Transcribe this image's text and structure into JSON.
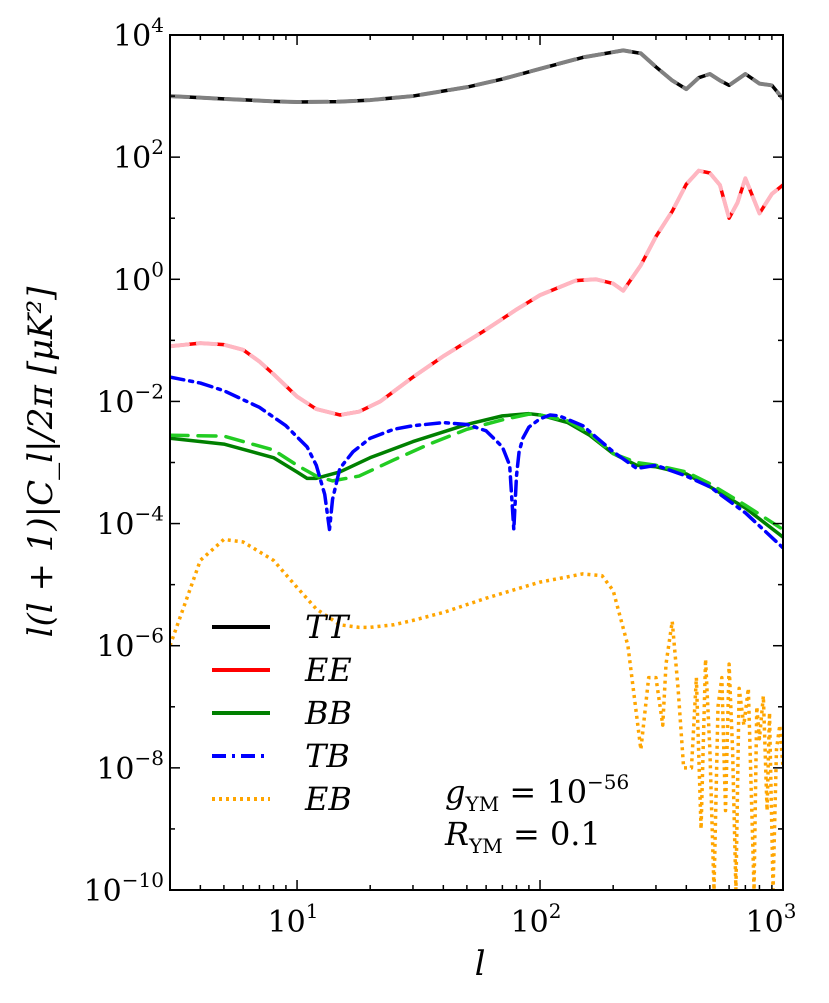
{
  "chart_data": {
    "type": "line",
    "title": "",
    "xlabel": "l",
    "ylabel": "l(l + 1)|C_l|/2π  [μK²]",
    "xscale": "log",
    "yscale": "log",
    "xlim": [
      3,
      1000
    ],
    "ylim": [
      1e-10,
      10000
    ],
    "grid": false,
    "legend_position": "bottom-left",
    "x_ticks": [
      {
        "value": 10,
        "base": "10",
        "exp": "1"
      },
      {
        "value": 100,
        "base": "10",
        "exp": "2"
      },
      {
        "value": 1000,
        "base": "10",
        "exp": "3"
      }
    ],
    "y_ticks": [
      {
        "value": 1e-10,
        "base": "10",
        "exp": "−10"
      },
      {
        "value": 1e-08,
        "base": "10",
        "exp": "−8"
      },
      {
        "value": 1e-06,
        "base": "10",
        "exp": "−6"
      },
      {
        "value": 0.0001,
        "base": "10",
        "exp": "−4"
      },
      {
        "value": 0.01,
        "base": "10",
        "exp": "−2"
      },
      {
        "value": 1,
        "base": "10",
        "exp": "0"
      },
      {
        "value": 100,
        "base": "10",
        "exp": "2"
      },
      {
        "value": 10000,
        "base": "10",
        "exp": "4"
      }
    ],
    "series": [
      {
        "name": "TT",
        "key": "tt",
        "color": "#000000",
        "style": "solid",
        "x": [
          3,
          5,
          8,
          10,
          15,
          20,
          30,
          50,
          70,
          100,
          150,
          220,
          260,
          300,
          350,
          400,
          450,
          500,
          550,
          600,
          700,
          800,
          900,
          1000
        ],
        "y": [
          1000,
          900,
          820,
          800,
          810,
          860,
          1000,
          1400,
          1900,
          2800,
          4300,
          5600,
          5000,
          3000,
          1800,
          1300,
          2000,
          2300,
          1800,
          1500,
          2300,
          1600,
          1500,
          900
        ]
      },
      {
        "name": "TT (dashed)",
        "key": "tt2",
        "color": "#808080",
        "style": "dashed",
        "x": [
          3,
          5,
          8,
          10,
          15,
          20,
          30,
          50,
          70,
          100,
          150,
          220,
          260,
          300,
          350,
          400,
          450,
          500,
          550,
          600,
          700,
          800,
          900,
          1000
        ],
        "y": [
          1000,
          900,
          820,
          800,
          810,
          860,
          1000,
          1400,
          1900,
          2800,
          4300,
          5600,
          5000,
          3000,
          1800,
          1300,
          2000,
          2300,
          1800,
          1500,
          2300,
          1600,
          1500,
          900
        ]
      },
      {
        "name": "EE",
        "key": "ee",
        "color": "#ff0000",
        "style": "solid",
        "x": [
          3,
          4,
          5,
          6,
          7,
          8,
          10,
          12,
          15,
          18,
          22,
          30,
          40,
          60,
          80,
          100,
          140,
          170,
          200,
          220,
          260,
          300,
          350,
          400,
          450,
          500,
          550,
          600,
          650,
          700,
          800,
          900,
          1000
        ],
        "y": [
          0.08,
          0.09,
          0.085,
          0.07,
          0.045,
          0.028,
          0.012,
          0.0075,
          0.006,
          0.0068,
          0.01,
          0.025,
          0.055,
          0.15,
          0.32,
          0.55,
          0.95,
          1.0,
          0.85,
          0.65,
          1.7,
          5,
          13,
          36,
          60,
          55,
          35,
          10,
          18,
          45,
          12,
          25,
          35
        ]
      },
      {
        "name": "EE (dashed)",
        "key": "ee2",
        "color": "#ffb6c1",
        "style": "dashed",
        "x": [
          3,
          4,
          5,
          6,
          7,
          8,
          10,
          12,
          15,
          18,
          22,
          30,
          40,
          60,
          80,
          100,
          140,
          170,
          200,
          220,
          260,
          300,
          350,
          400,
          450,
          500,
          550,
          600,
          650,
          700,
          800,
          900,
          1000
        ],
        "y": [
          0.08,
          0.09,
          0.085,
          0.07,
          0.045,
          0.028,
          0.012,
          0.0075,
          0.006,
          0.0068,
          0.01,
          0.025,
          0.055,
          0.15,
          0.32,
          0.55,
          0.95,
          1.0,
          0.85,
          0.65,
          1.7,
          5,
          13,
          36,
          60,
          55,
          35,
          10,
          18,
          45,
          12,
          25,
          35
        ]
      },
      {
        "name": "BB",
        "key": "bb",
        "color": "#008000",
        "style": "solid",
        "x": [
          3,
          5,
          8,
          10,
          11,
          12,
          15,
          20,
          30,
          50,
          70,
          90,
          100,
          130,
          160,
          200,
          250,
          300,
          400,
          500,
          700,
          1000
        ],
        "y": [
          0.0025,
          0.002,
          0.0012,
          0.0007,
          0.00055,
          0.00055,
          0.0007,
          0.0012,
          0.0022,
          0.0042,
          0.0058,
          0.0063,
          0.006,
          0.0045,
          0.0028,
          0.0014,
          0.0009,
          0.00085,
          0.00065,
          0.0004,
          0.00018,
          6e-05
        ]
      },
      {
        "name": "BB (dashed)",
        "key": "bb2",
        "color": "#22cc22",
        "style": "dashed",
        "x": [
          3,
          5,
          8,
          10,
          12,
          14,
          18,
          25,
          35,
          50,
          70,
          90,
          100,
          130,
          160,
          200,
          250,
          300,
          400,
          500,
          700,
          1000
        ],
        "y": [
          0.0028,
          0.0027,
          0.0016,
          0.0009,
          0.0006,
          0.0005,
          0.0006,
          0.0011,
          0.002,
          0.0035,
          0.005,
          0.0062,
          0.006,
          0.0048,
          0.003,
          0.0014,
          0.001,
          0.0009,
          0.0007,
          0.00045,
          0.0002,
          8e-05
        ]
      },
      {
        "name": "TB",
        "key": "tb",
        "color": "#0000ff",
        "style": "dashdot",
        "x": [
          3,
          4,
          5,
          7,
          9,
          11,
          12,
          13,
          13.6,
          14,
          15,
          17,
          20,
          25,
          30,
          40,
          50,
          60,
          70,
          75,
          78,
          80,
          82,
          85,
          90,
          100,
          110,
          120,
          150,
          200,
          250,
          300,
          400,
          500,
          700,
          1000
        ],
        "y": [
          0.025,
          0.02,
          0.015,
          0.008,
          0.004,
          0.0018,
          0.0009,
          0.0003,
          8e-05,
          0.00025,
          0.0008,
          0.0015,
          0.0025,
          0.0035,
          0.004,
          0.0045,
          0.0042,
          0.0033,
          0.0018,
          0.0009,
          8e-05,
          0.0006,
          0.0015,
          0.0025,
          0.0038,
          0.0052,
          0.006,
          0.0058,
          0.004,
          0.0015,
          0.0008,
          0.0009,
          0.0006,
          0.0004,
          0.00015,
          4e-05
        ]
      },
      {
        "name": "EB",
        "key": "eb",
        "color": "#ffa500",
        "style": "dotted",
        "x": [
          3,
          4,
          5,
          6,
          8,
          10,
          12,
          15,
          18,
          20,
          25,
          30,
          40,
          60,
          100,
          150,
          180,
          200,
          230,
          260,
          280,
          300,
          320,
          330,
          350,
          370,
          390,
          420,
          440,
          460,
          480,
          500,
          520,
          540,
          560,
          580,
          600,
          620,
          640,
          660,
          690,
          720,
          760,
          780,
          800,
          830,
          860,
          880,
          910,
          940,
          970,
          1000
        ],
        "y": [
          1e-06,
          2.5e-05,
          5.5e-05,
          5e-05,
          2.5e-05,
          9e-06,
          4e-06,
          2.2e-06,
          2e-06,
          2e-06,
          2.2e-06,
          2.6e-06,
          3.5e-06,
          6e-06,
          1.1e-05,
          1.5e-05,
          1.4e-05,
          8e-06,
          1e-06,
          2e-08,
          3e-07,
          3e-07,
          5e-08,
          5e-07,
          2.5e-06,
          2e-07,
          1e-08,
          1e-08,
          3e-07,
          1e-09,
          6e-07,
          2e-08,
          1e-10,
          1e-07,
          3e-07,
          2e-09,
          5e-07,
          2e-08,
          1e-10,
          2e-07,
          5e-08,
          2e-07,
          1e-10,
          1e-07,
          3e-08,
          1.5e-07,
          2e-09,
          8e-08,
          1e-10,
          2e-08,
          5e-08,
          1e-08
        ]
      }
    ],
    "legend": [
      {
        "label": "TT",
        "color": "#000000",
        "style": "solid"
      },
      {
        "label": "EE",
        "color": "#ff0000",
        "style": "solid"
      },
      {
        "label": "BB",
        "color": "#008000",
        "style": "solid"
      },
      {
        "label": "TB",
        "color": "#0000ff",
        "style": "dashdot"
      },
      {
        "label": "EB",
        "color": "#ffa500",
        "style": "dotted"
      }
    ],
    "annotations": {
      "g_symbol": "g",
      "g_sub": "YM",
      "g_eq": " = 10",
      "g_exp": "−56",
      "r_symbol": "R",
      "r_sub": "YM",
      "r_eq": " = 0.1"
    }
  }
}
